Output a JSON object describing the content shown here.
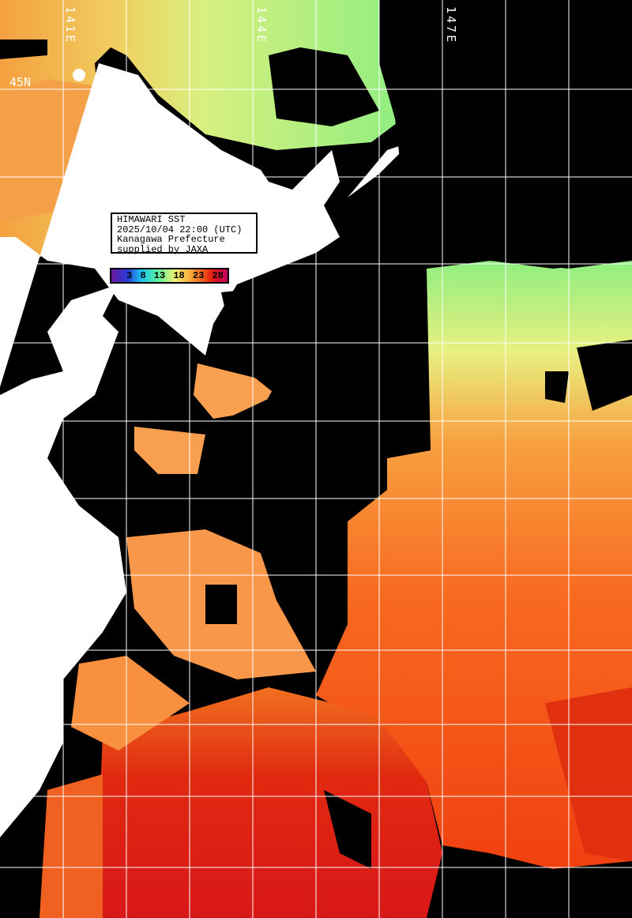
{
  "info_box": {
    "title": "HIMAWARI SST",
    "datetime": "2025/10/04 22:00 (UTC)",
    "region": "Kanagawa Prefecture",
    "credit": "supplied by JAXA"
  },
  "legend": {
    "unit_ticks": [
      "3",
      "8",
      "13",
      "18",
      "23",
      "28"
    ],
    "colors": [
      "#6a1a9a",
      "#2a3ad8",
      "#18c8f0",
      "#5cf0a0",
      "#f0f070",
      "#f8a030",
      "#e82010",
      "#c00060"
    ]
  },
  "grid": {
    "longitude_labels": [
      "141E",
      "144E",
      "147E"
    ],
    "latitude_labels": [
      "45N"
    ]
  },
  "colors": {
    "land": "#ffffff",
    "cloud": "#000000",
    "grid": "#ffffff"
  }
}
